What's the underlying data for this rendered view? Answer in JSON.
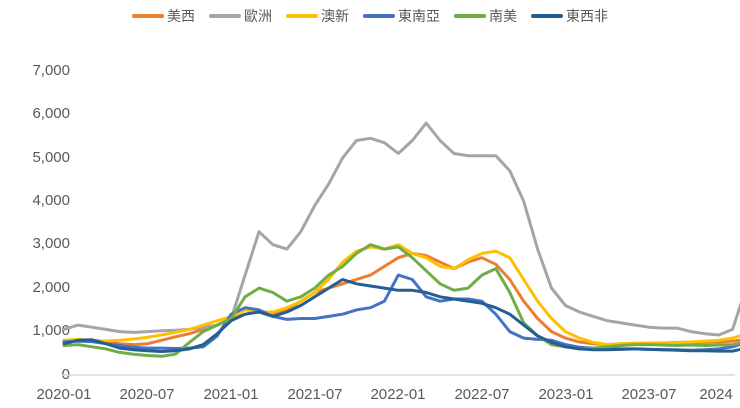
{
  "chart_data": {
    "type": "line",
    "title": "",
    "xlabel": "",
    "ylabel": "",
    "ylim": [
      0,
      7000
    ],
    "yticks": [
      "0",
      "1,000",
      "2,000",
      "3,000",
      "4,000",
      "5,000",
      "6,000",
      "7,000"
    ],
    "xticks": [
      "2020-01",
      "2020-07",
      "2021-01",
      "2021-07",
      "2022-01",
      "2022-07",
      "2023-01",
      "2023-07",
      "2024"
    ],
    "grid": false,
    "legend_position": "top",
    "x_start": "2020-01",
    "x_step": "month",
    "series": [
      {
        "name": "美西",
        "color": "#ED7D31",
        "values": [
          780,
          800,
          790,
          760,
          720,
          700,
          720,
          800,
          880,
          950,
          1050,
          1150,
          1300,
          1400,
          1450,
          1400,
          1500,
          1700,
          1900,
          2000,
          2100,
          2200,
          2300,
          2500,
          2700,
          2800,
          2750,
          2600,
          2450,
          2600,
          2700,
          2550,
          2200,
          1700,
          1300,
          1000,
          850,
          760,
          720,
          700,
          720,
          730,
          720,
          730,
          740,
          740,
          750,
          760,
          780,
          820
        ]
      },
      {
        "name": "歐洲",
        "color": "#A5A5A5",
        "values": [
          1050,
          1150,
          1100,
          1050,
          1000,
          980,
          1000,
          1020,
          1030,
          1050,
          1100,
          1150,
          1300,
          2300,
          3300,
          3000,
          2900,
          3300,
          3900,
          4400,
          5000,
          5400,
          5450,
          5350,
          5100,
          5400,
          5800,
          5400,
          5100,
          5050,
          5050,
          5050,
          4700,
          4000,
          2900,
          2000,
          1600,
          1450,
          1350,
          1250,
          1200,
          1150,
          1100,
          1080,
          1080,
          1000,
          950,
          920,
          1050,
          2050
        ]
      },
      {
        "name": "澳新",
        "color": "#FFC000",
        "values": [
          800,
          820,
          800,
          780,
          800,
          830,
          870,
          920,
          980,
          1050,
          1150,
          1250,
          1350,
          1500,
          1450,
          1450,
          1550,
          1700,
          1900,
          2200,
          2600,
          2850,
          2950,
          2900,
          3000,
          2800,
          2700,
          2500,
          2450,
          2650,
          2800,
          2850,
          2700,
          2200,
          1700,
          1300,
          1000,
          850,
          750,
          700,
          720,
          730,
          740,
          740,
          750,
          760,
          780,
          800,
          850,
          950
        ]
      },
      {
        "name": "東南亞",
        "color": "#4472C4",
        "values": [
          760,
          780,
          770,
          720,
          680,
          640,
          620,
          620,
          610,
          620,
          650,
          900,
          1400,
          1550,
          1500,
          1350,
          1280,
          1300,
          1300,
          1350,
          1400,
          1500,
          1550,
          1700,
          2300,
          2200,
          1800,
          1700,
          1750,
          1750,
          1700,
          1400,
          1000,
          850,
          820,
          800,
          700,
          640,
          620,
          600,
          600,
          600,
          590,
          580,
          580,
          570,
          580,
          600,
          650,
          750
        ]
      },
      {
        "name": "南美",
        "color": "#70AD47",
        "values": [
          680,
          700,
          650,
          600,
          520,
          480,
          450,
          430,
          480,
          750,
          1000,
          1150,
          1300,
          1800,
          2000,
          1900,
          1700,
          1800,
          2000,
          2300,
          2500,
          2800,
          3000,
          2900,
          2950,
          2700,
          2400,
          2100,
          1950,
          2000,
          2300,
          2450,
          1900,
          1200,
          900,
          700,
          650,
          600,
          620,
          650,
          680,
          700,
          700,
          690,
          680,
          690,
          680,
          690,
          700,
          750
        ]
      },
      {
        "name": "東西非",
        "color": "#255E91",
        "values": [
          720,
          800,
          810,
          720,
          620,
          580,
          560,
          540,
          560,
          600,
          700,
          950,
          1250,
          1400,
          1450,
          1350,
          1450,
          1600,
          1800,
          2000,
          2200,
          2100,
          2050,
          2000,
          1950,
          1950,
          1900,
          1800,
          1750,
          1700,
          1650,
          1550,
          1400,
          1150,
          900,
          750,
          650,
          600,
          580,
          580,
          590,
          600,
          590,
          580,
          570,
          560,
          560,
          550,
          550,
          620
        ]
      }
    ]
  },
  "legend": [
    {
      "label": "美西",
      "color": "#ED7D31"
    },
    {
      "label": "歐洲",
      "color": "#A5A5A5"
    },
    {
      "label": "澳新",
      "color": "#FFC000"
    },
    {
      "label": "東南亞",
      "color": "#4472C4"
    },
    {
      "label": "南美",
      "color": "#70AD47"
    },
    {
      "label": "東西非",
      "color": "#255E91"
    }
  ]
}
